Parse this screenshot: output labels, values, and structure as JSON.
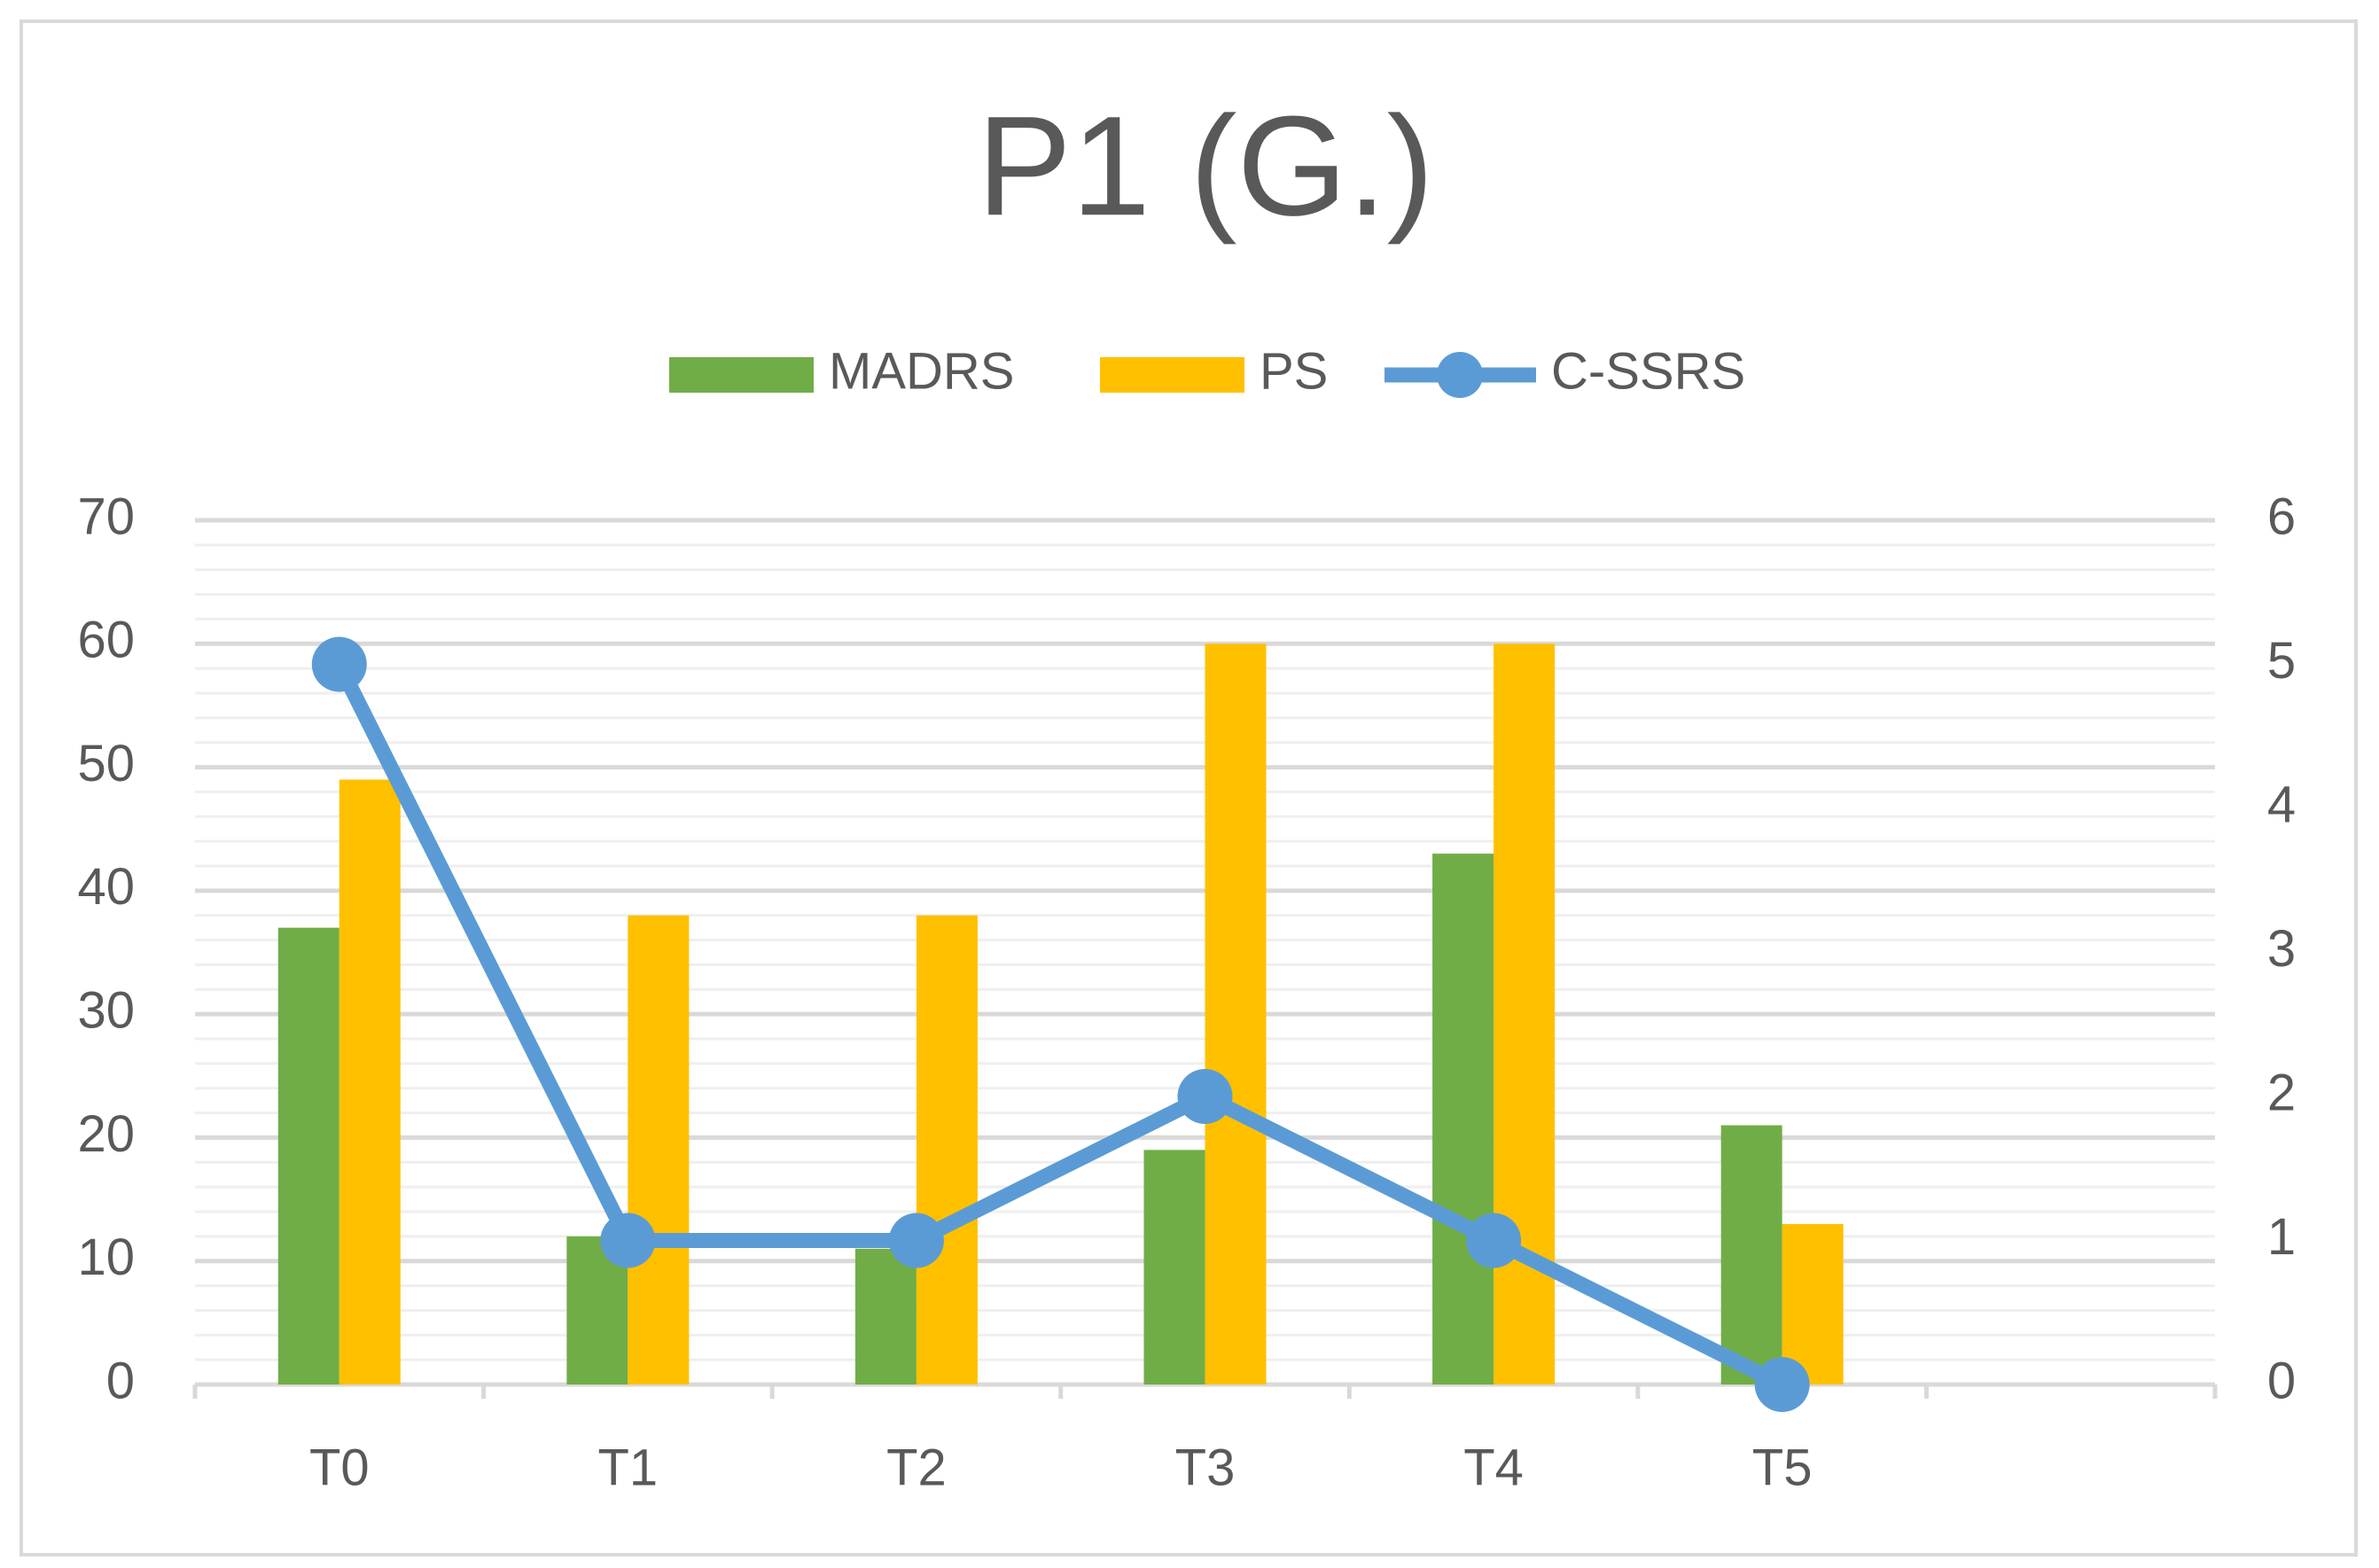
{
  "chart_data": {
    "type": "bar",
    "title": "P1 (G.)",
    "categories": [
      "T0",
      "T1",
      "T2",
      "T3",
      "T4",
      "T5",
      null
    ],
    "series": [
      {
        "name": "MADRS",
        "type": "bar",
        "color": "#70ad47",
        "values": [
          37,
          12,
          11,
          19,
          43,
          21,
          null
        ]
      },
      {
        "name": "PS",
        "type": "bar",
        "color": "#ffc000",
        "values": [
          49,
          38,
          38,
          60,
          60,
          13,
          null
        ]
      },
      {
        "name": "C-SSRS",
        "type": "line",
        "axis": "y2",
        "color": "#5b9bd5",
        "values": [
          5,
          1,
          1,
          2,
          1,
          0,
          null
        ]
      }
    ],
    "ylim": [
      0,
      70
    ],
    "yticks": [
      0,
      10,
      20,
      30,
      40,
      50,
      60,
      70
    ],
    "y2lim": [
      0,
      6
    ],
    "y2ticks": [
      0,
      1,
      2,
      3,
      4,
      5,
      6
    ],
    "grid": true,
    "legend": "top"
  }
}
